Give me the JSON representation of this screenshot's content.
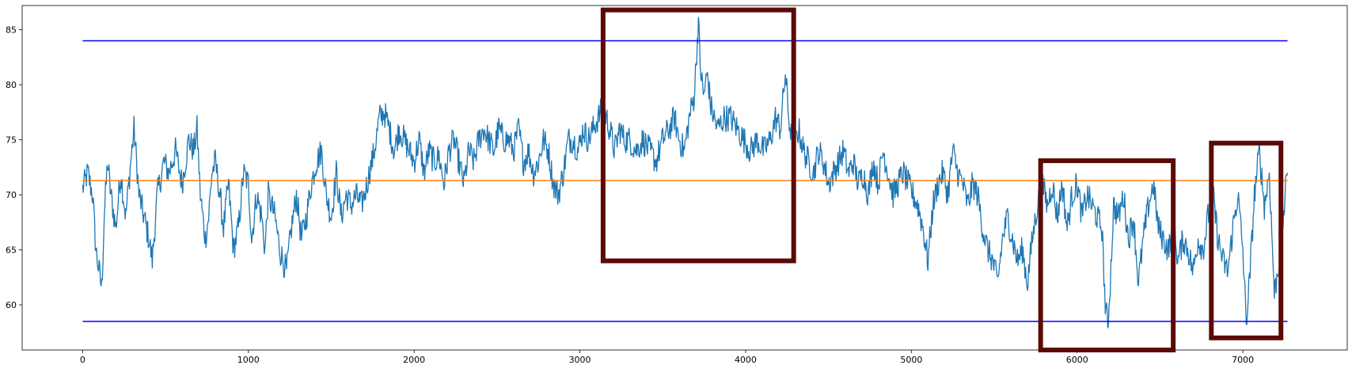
{
  "chart_data": {
    "type": "line",
    "title": "",
    "xlabel": "",
    "ylabel": "",
    "xlim": [
      -365,
      7630
    ],
    "ylim": [
      55.9,
      87.2
    ],
    "x_ticks": [
      0,
      1000,
      2000,
      3000,
      4000,
      5000,
      6000,
      7000
    ],
    "x_tick_labels": [
      "0",
      "1000",
      "2000",
      "3000",
      "4000",
      "5000",
      "6000",
      "7000"
    ],
    "y_ticks": [
      60,
      65,
      70,
      75,
      80,
      85
    ],
    "y_tick_labels": [
      "60",
      "65",
      "70",
      "75",
      "80",
      "85"
    ],
    "grid": false,
    "series": [
      {
        "color": "#1f77b4",
        "anchors": [
          [
            0,
            70.5
          ],
          [
            30,
            72
          ],
          [
            60,
            70
          ],
          [
            80,
            65
          ],
          [
            100,
            63
          ],
          [
            115,
            61.5
          ],
          [
            130,
            68
          ],
          [
            150,
            73
          ],
          [
            170,
            70
          ],
          [
            200,
            67
          ],
          [
            230,
            72
          ],
          [
            260,
            68
          ],
          [
            290,
            73
          ],
          [
            310,
            76
          ],
          [
            340,
            70
          ],
          [
            370,
            68
          ],
          [
            400,
            66
          ],
          [
            420,
            64
          ],
          [
            450,
            70
          ],
          [
            490,
            73
          ],
          [
            520,
            72
          ],
          [
            560,
            74
          ],
          [
            600,
            71
          ],
          [
            640,
            75
          ],
          [
            670,
            74
          ],
          [
            690,
            76
          ],
          [
            710,
            70
          ],
          [
            740,
            66
          ],
          [
            760,
            68
          ],
          [
            780,
            72
          ],
          [
            800,
            73
          ],
          [
            820,
            71
          ],
          [
            850,
            67
          ],
          [
            880,
            71
          ],
          [
            910,
            65
          ],
          [
            940,
            67
          ],
          [
            970,
            72
          ],
          [
            1000,
            71
          ],
          [
            1020,
            66
          ],
          [
            1050,
            70
          ],
          [
            1080,
            68
          ],
          [
            1100,
            65
          ],
          [
            1120,
            70
          ],
          [
            1160,
            68
          ],
          [
            1190,
            65
          ],
          [
            1230,
            63
          ],
          [
            1260,
            67
          ],
          [
            1290,
            70
          ],
          [
            1320,
            66
          ],
          [
            1350,
            68
          ],
          [
            1380,
            71
          ],
          [
            1410,
            73
          ],
          [
            1440,
            74
          ],
          [
            1470,
            70
          ],
          [
            1500,
            68
          ],
          [
            1530,
            72
          ],
          [
            1560,
            68
          ],
          [
            1590,
            70
          ],
          [
            1620,
            69
          ],
          [
            1650,
            70
          ],
          [
            1680,
            69
          ],
          [
            1700,
            70
          ],
          [
            1730,
            72
          ],
          [
            1760,
            74
          ],
          [
            1790,
            77
          ],
          [
            1820,
            77.5
          ],
          [
            1850,
            76
          ],
          [
            1880,
            74
          ],
          [
            1910,
            76
          ],
          [
            1940,
            75
          ],
          [
            1970,
            74
          ],
          [
            2000,
            73
          ],
          [
            2030,
            75
          ],
          [
            2060,
            72
          ],
          [
            2090,
            74
          ],
          [
            2120,
            73
          ],
          [
            2150,
            73.5
          ],
          [
            2180,
            71
          ],
          [
            2210,
            74
          ],
          [
            2240,
            75
          ],
          [
            2270,
            73
          ],
          [
            2300,
            71
          ],
          [
            2330,
            74
          ],
          [
            2360,
            73
          ],
          [
            2390,
            75
          ],
          [
            2420,
            76
          ],
          [
            2450,
            75
          ],
          [
            2480,
            74
          ],
          [
            2510,
            76
          ],
          [
            2540,
            75
          ],
          [
            2570,
            75
          ],
          [
            2600,
            74
          ],
          [
            2630,
            76
          ],
          [
            2660,
            73
          ],
          [
            2690,
            74
          ],
          [
            2720,
            72
          ],
          [
            2750,
            73
          ],
          [
            2780,
            75
          ],
          [
            2810,
            74
          ],
          [
            2840,
            71
          ],
          [
            2870,
            70
          ],
          [
            2900,
            72
          ],
          [
            2930,
            75
          ],
          [
            2960,
            75
          ],
          [
            2990,
            74
          ],
          [
            3020,
            76
          ],
          [
            3050,
            75
          ],
          [
            3080,
            76
          ],
          [
            3110,
            77
          ],
          [
            3140,
            78
          ],
          [
            3180,
            76
          ],
          [
            3210,
            74
          ],
          [
            3240,
            76
          ],
          [
            3270,
            75
          ],
          [
            3300,
            75
          ],
          [
            3340,
            74
          ],
          [
            3380,
            75
          ],
          [
            3420,
            74
          ],
          [
            3460,
            73
          ],
          [
            3500,
            75
          ],
          [
            3540,
            76
          ],
          [
            3570,
            77
          ],
          [
            3600,
            75
          ],
          [
            3630,
            74
          ],
          [
            3660,
            77
          ],
          [
            3690,
            79
          ],
          [
            3705,
            83
          ],
          [
            3715,
            86
          ],
          [
            3725,
            82
          ],
          [
            3745,
            79
          ],
          [
            3770,
            81
          ],
          [
            3790,
            78
          ],
          [
            3830,
            76
          ],
          [
            3870,
            77
          ],
          [
            3910,
            77
          ],
          [
            3950,
            76
          ],
          [
            3990,
            75
          ],
          [
            4030,
            74
          ],
          [
            4070,
            75
          ],
          [
            4110,
            74
          ],
          [
            4150,
            75
          ],
          [
            4180,
            77
          ],
          [
            4210,
            76
          ],
          [
            4240,
            81
          ],
          [
            4260,
            77
          ],
          [
            4290,
            74
          ],
          [
            4320,
            76
          ],
          [
            4350,
            74
          ],
          [
            4380,
            73
          ],
          [
            4410,
            72
          ],
          [
            4440,
            74
          ],
          [
            4470,
            73
          ],
          [
            4500,
            71
          ],
          [
            4530,
            72
          ],
          [
            4560,
            73
          ],
          [
            4590,
            74
          ],
          [
            4620,
            72
          ],
          [
            4650,
            73
          ],
          [
            4680,
            71
          ],
          [
            4710,
            72
          ],
          [
            4740,
            70
          ],
          [
            4770,
            73
          ],
          [
            4800,
            71
          ],
          [
            4830,
            74
          ],
          [
            4860,
            72
          ],
          [
            4890,
            70
          ],
          [
            4920,
            71
          ],
          [
            4950,
            72
          ],
          [
            4980,
            71
          ],
          [
            5010,
            70
          ],
          [
            5040,
            69
          ],
          [
            5070,
            67
          ],
          [
            5100,
            64
          ],
          [
            5130,
            69
          ],
          [
            5160,
            71
          ],
          [
            5190,
            72
          ],
          [
            5220,
            70
          ],
          [
            5250,
            74
          ],
          [
            5280,
            72
          ],
          [
            5310,
            71
          ],
          [
            5340,
            69
          ],
          [
            5370,
            71
          ],
          [
            5400,
            70
          ],
          [
            5430,
            67
          ],
          [
            5460,
            65
          ],
          [
            5490,
            64
          ],
          [
            5520,
            62
          ],
          [
            5550,
            66
          ],
          [
            5580,
            68
          ],
          [
            5610,
            66
          ],
          [
            5640,
            64
          ],
          [
            5670,
            65
          ],
          [
            5700,
            62
          ],
          [
            5730,
            66
          ],
          [
            5760,
            69
          ],
          [
            5790,
            71
          ],
          [
            5820,
            69
          ],
          [
            5850,
            71
          ],
          [
            5880,
            68
          ],
          [
            5910,
            71
          ],
          [
            5940,
            67
          ],
          [
            5970,
            70
          ],
          [
            6000,
            71
          ],
          [
            6030,
            68
          ],
          [
            6060,
            70
          ],
          [
            6090,
            69
          ],
          [
            6120,
            68
          ],
          [
            6150,
            67
          ],
          [
            6170,
            60
          ],
          [
            6185,
            58
          ],
          [
            6200,
            62
          ],
          [
            6220,
            69
          ],
          [
            6250,
            68
          ],
          [
            6280,
            70
          ],
          [
            6310,
            66
          ],
          [
            6340,
            68
          ],
          [
            6370,
            62
          ],
          [
            6400,
            66
          ],
          [
            6430,
            69
          ],
          [
            6460,
            71
          ],
          [
            6490,
            67
          ],
          [
            6520,
            66
          ],
          [
            6550,
            65
          ],
          [
            6580,
            67
          ],
          [
            6610,
            64
          ],
          [
            6640,
            66
          ],
          [
            6670,
            65
          ],
          [
            6700,
            63
          ],
          [
            6730,
            66
          ],
          [
            6760,
            65
          ],
          [
            6790,
            68
          ],
          [
            6820,
            70
          ],
          [
            6850,
            66
          ],
          [
            6880,
            64
          ],
          [
            6910,
            63
          ],
          [
            6940,
            67
          ],
          [
            6970,
            70
          ],
          [
            7000,
            65
          ],
          [
            7020,
            58.5
          ],
          [
            7040,
            62
          ],
          [
            7070,
            70
          ],
          [
            7100,
            74
          ],
          [
            7130,
            69
          ],
          [
            7160,
            72
          ],
          [
            7190,
            61
          ],
          [
            7220,
            64
          ],
          [
            7250,
            69
          ],
          [
            7270,
            72
          ]
        ]
      },
      {
        "color": "#ff7f0e",
        "x": [
          0,
          7270
        ],
        "y": [
          71.3,
          71.3
        ]
      },
      {
        "color": "#0000ff",
        "x": [
          0,
          7270
        ],
        "y": [
          84.0,
          84.0
        ]
      },
      {
        "color": "#0000ff",
        "x": [
          0,
          7270
        ],
        "y": [
          58.5,
          58.5
        ]
      }
    ],
    "annotations": [
      {
        "shape": "rectangle",
        "color": "#5c0a06",
        "x0": 3140,
        "x1": 4290,
        "y0": 64.0,
        "y1": 86.8
      },
      {
        "shape": "rectangle",
        "color": "#5c0a06",
        "x0": 5780,
        "x1": 6580,
        "y0": 55.9,
        "y1": 73.1
      },
      {
        "shape": "rectangle",
        "color": "#5c0a06",
        "x0": 6810,
        "x1": 7230,
        "y0": 57.0,
        "y1": 74.7
      }
    ]
  }
}
